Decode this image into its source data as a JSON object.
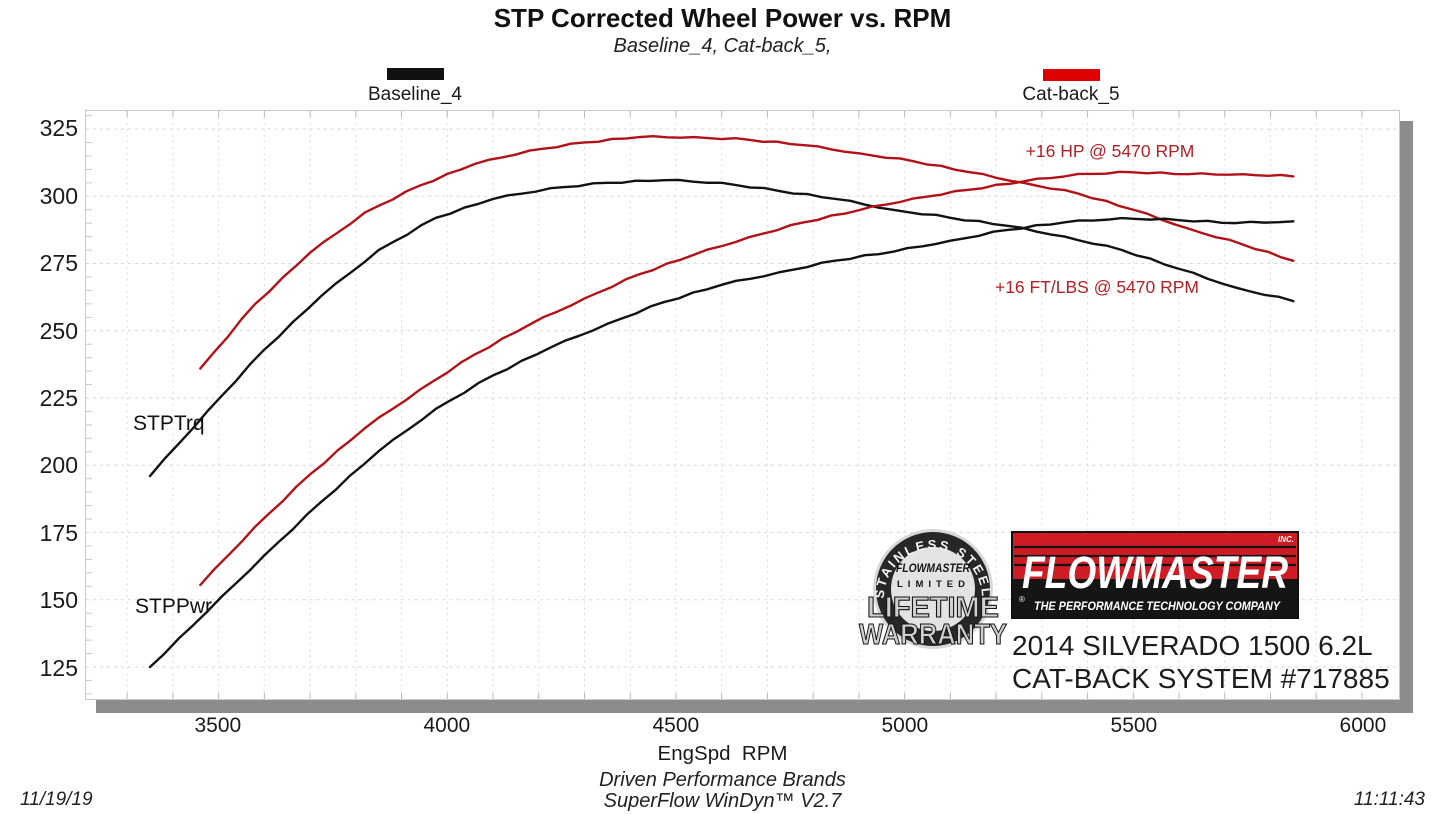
{
  "title": "STP Corrected Wheel Power vs. RPM",
  "subtitle": "Baseline_4, Cat-back_5,",
  "legend": {
    "items": [
      {
        "label": "Baseline_4",
        "color": "#111111"
      },
      {
        "label": "Cat-back_5",
        "color": "#dd0000"
      }
    ]
  },
  "plot_labels": {
    "torque_label": "STPTrq",
    "power_label": "STPPwr",
    "hp_gain_annotation": "+16 HP @ 5470 RPM",
    "torque_gain_annotation": "+16 FT/LBS @ 5470 RPM"
  },
  "vehicle": {
    "line1": "2014 SILVERADO 1500 6.2L",
    "line2": "CAT-BACK SYSTEM #717885"
  },
  "flowmaster_logo": {
    "name": "FLOWMASTER",
    "inc": "INC.",
    "registered": "®",
    "tagline": "THE PERFORMANCE TECHNOLOGY COMPANY",
    "red": "#ce1b24",
    "black": "#151515"
  },
  "warranty_badge": {
    "arc_text": "STAINLESS STEEL",
    "brand": "FLOWMASTER",
    "limited": "LIMITED",
    "line1": "LIFETIME",
    "line2": "WARRANTY"
  },
  "footer": {
    "x_axis_title": "EngSpd  RPM",
    "brand_line": "Driven Performance Brands",
    "software_line": "SuperFlow WinDyn™ V2.7",
    "date": "11/19/19",
    "time": "11:11:43"
  },
  "colors": {
    "curve_black": "#121212",
    "curve_red": "#b01218",
    "annotation_red": "#b32025",
    "shadow_gray": "#8c8c8c",
    "grid_gray": "#d9d9d9"
  },
  "chart_data": {
    "type": "line",
    "title": "STP Corrected Wheel Power vs. RPM",
    "subtitle": "Baseline_4, Cat-back_5,",
    "xlabel": "EngSpd RPM",
    "ylabel": "",
    "x_range": [
      3210,
      6081
    ],
    "y_range": [
      113.1,
      331.7
    ],
    "xticks": [
      3500,
      4000,
      4500,
      5000,
      5500,
      6000
    ],
    "yticks": [
      125,
      150,
      175,
      200,
      225,
      250,
      275,
      300,
      325
    ],
    "grid": {
      "x_minor_step": 100,
      "y_major_step": 25,
      "style": "dashed"
    },
    "legend_position": "top",
    "annotations": [
      {
        "text": "+16 HP @ 5470 RPM",
        "rpm": 5470
      },
      {
        "text": "+16 FT/LBS @ 5470 RPM",
        "rpm": 5470
      }
    ],
    "series": [
      {
        "name": "Baseline_4 STPTrq",
        "color": "#121212",
        "points": [
          [
            3350,
            196
          ],
          [
            3475,
            220
          ],
          [
            3600,
            243
          ],
          [
            3725,
            263
          ],
          [
            3850,
            280
          ],
          [
            3975,
            292
          ],
          [
            4100,
            299
          ],
          [
            4225,
            303
          ],
          [
            4350,
            305
          ],
          [
            4475,
            306
          ],
          [
            4600,
            305
          ],
          [
            4725,
            302
          ],
          [
            4850,
            299
          ],
          [
            4975,
            295
          ],
          [
            5100,
            292
          ],
          [
            5225,
            289
          ],
          [
            5350,
            285
          ],
          [
            5475,
            280
          ],
          [
            5600,
            273
          ],
          [
            5725,
            266
          ],
          [
            5850,
            261
          ]
        ]
      },
      {
        "name": "Cat-back_5 STPTrq",
        "color": "#b01218",
        "points": [
          [
            3460,
            236
          ],
          [
            3580,
            260
          ],
          [
            3700,
            279
          ],
          [
            3820,
            294
          ],
          [
            3940,
            304
          ],
          [
            4060,
            312
          ],
          [
            4180,
            317
          ],
          [
            4300,
            320
          ],
          [
            4420,
            322
          ],
          [
            4540,
            322
          ],
          [
            4660,
            321
          ],
          [
            4780,
            319
          ],
          [
            4900,
            316
          ],
          [
            5020,
            313
          ],
          [
            5140,
            309
          ],
          [
            5260,
            305
          ],
          [
            5380,
            301
          ],
          [
            5500,
            295
          ],
          [
            5620,
            288
          ],
          [
            5740,
            282
          ],
          [
            5850,
            276
          ]
        ]
      },
      {
        "name": "Baseline_4 STPPwr",
        "color": "#121212",
        "points": [
          [
            3350,
            125.0
          ],
          [
            3475,
            145.6
          ],
          [
            3600,
            166.5
          ],
          [
            3725,
            186.5
          ],
          [
            3850,
            205.2
          ],
          [
            3975,
            221.0
          ],
          [
            4100,
            233.4
          ],
          [
            4225,
            243.7
          ],
          [
            4350,
            252.6
          ],
          [
            4475,
            260.7
          ],
          [
            4600,
            267.1
          ],
          [
            4725,
            271.7
          ],
          [
            4850,
            276.1
          ],
          [
            4975,
            279.4
          ],
          [
            5100,
            283.5
          ],
          [
            5225,
            287.5
          ],
          [
            5350,
            290.3
          ],
          [
            5475,
            291.9
          ],
          [
            5600,
            291.1
          ],
          [
            5725,
            290.0
          ],
          [
            5850,
            290.7
          ]
        ]
      },
      {
        "name": "Cat-back_5 STPPwr",
        "color": "#b01218",
        "points": [
          [
            3460,
            155.5
          ],
          [
            3580,
            177.2
          ],
          [
            3700,
            196.6
          ],
          [
            3820,
            213.8
          ],
          [
            3940,
            228.1
          ],
          [
            4060,
            241.2
          ],
          [
            4180,
            252.3
          ],
          [
            4300,
            262.0
          ],
          [
            4420,
            271.0
          ],
          [
            4540,
            278.3
          ],
          [
            4660,
            284.8
          ],
          [
            4780,
            290.3
          ],
          [
            4900,
            294.8
          ],
          [
            5020,
            299.2
          ],
          [
            5140,
            302.4
          ],
          [
            5260,
            305.5
          ],
          [
            5380,
            308.3
          ],
          [
            5500,
            308.9
          ],
          [
            5620,
            308.2
          ],
          [
            5740,
            308.2
          ],
          [
            5850,
            307.4
          ]
        ]
      }
    ]
  }
}
